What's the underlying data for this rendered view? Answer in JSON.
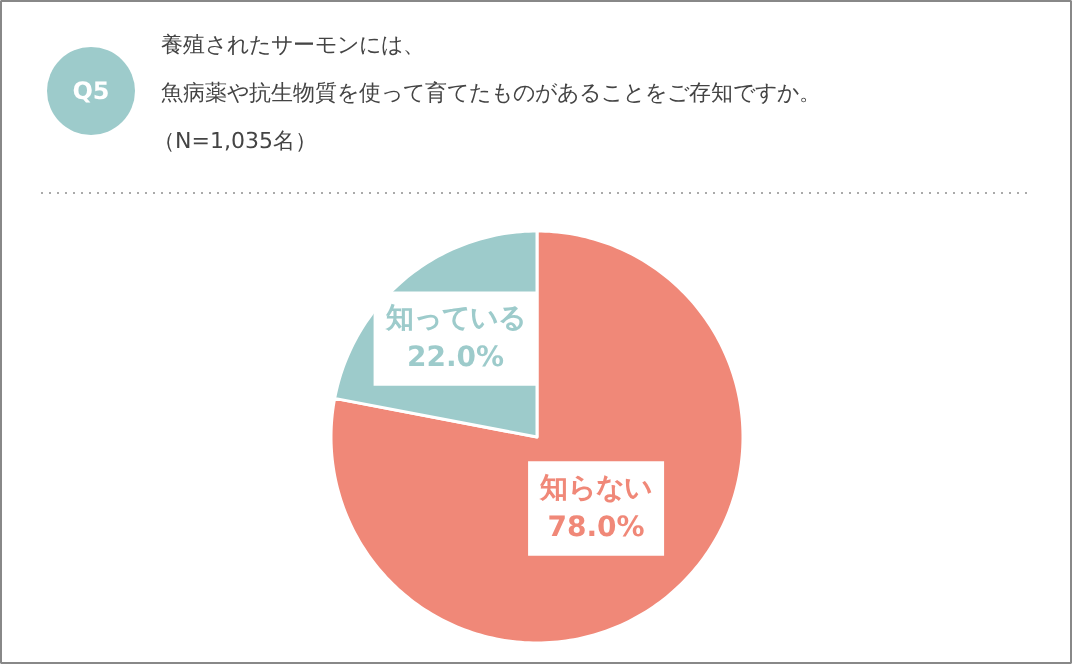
{
  "chart_data": {
    "type": "pie",
    "title": "養殖されたサーモンには、",
    "subtitle": "魚病薬や抗生物質を使って育てたものがあることをご存知ですか。",
    "annotations": [
      "Q5",
      "（N=1,035名）"
    ],
    "categories": [
      "知らない",
      "知っている"
    ],
    "values": [
      78.0,
      22.0
    ],
    "colors": [
      "#f08878",
      "#9dcbcb"
    ],
    "value_labels": [
      "78.0%",
      "22.0%"
    ]
  }
}
